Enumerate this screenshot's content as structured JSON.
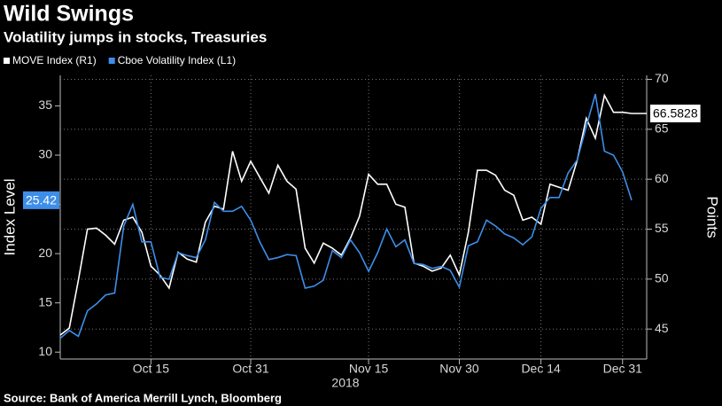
{
  "chart_data": {
    "type": "line",
    "title": "Wild Swings",
    "subtitle": "Volatility jumps in stocks, Treasuries",
    "source": "Source: Bank of America Merrill Lynch, Bloomberg",
    "x_label": "2018",
    "y_label": "Index Level",
    "y2_label": "Points",
    "categories": [
      null,
      null,
      null,
      null,
      null,
      null,
      null,
      null,
      null,
      null,
      "Oct 15",
      null,
      null,
      null,
      null,
      null,
      null,
      null,
      null,
      null,
      null,
      "Oct 31",
      null,
      null,
      null,
      null,
      null,
      null,
      null,
      null,
      null,
      null,
      null,
      null,
      "Nov 15",
      null,
      null,
      null,
      null,
      null,
      null,
      null,
      null,
      null,
      "Nov 30",
      null,
      null,
      null,
      null,
      null,
      null,
      null,
      null,
      "Dec 14",
      null,
      null,
      null,
      null,
      null,
      null,
      null,
      null,
      "Dec 31",
      null
    ],
    "series": [
      {
        "name": "MOVE Index (R1)",
        "color": "#ffffff",
        "axis": "y2",
        "values": [
          44.4,
          45.1,
          49.9,
          55.0,
          55.1,
          54.4,
          53.5,
          55.9,
          56.2,
          54.7,
          51.3,
          50.4,
          49.1,
          52.7,
          52.0,
          51.7,
          55.7,
          57.3,
          57.0,
          62.8,
          59.8,
          61.8,
          60.2,
          58.6,
          61.4,
          59.8,
          59.0,
          53.1,
          51.6,
          53.6,
          53.1,
          52.4,
          54.1,
          56.3,
          60.5,
          59.5,
          59.5,
          57.5,
          57.2,
          51.6,
          51.3,
          50.8,
          51.1,
          52.4,
          50.4,
          54.7,
          60.9,
          60.9,
          60.4,
          58.9,
          58.4,
          55.9,
          56.2,
          55.5,
          59.5,
          59.2,
          58.9,
          61.9,
          66.1,
          64.1,
          68.4,
          66.7,
          66.7,
          66.5828
        ]
      },
      {
        "name": "Cboe Volatility Index (L1)",
        "color": "#3d8ee8",
        "axis": "y",
        "values": [
          11.4,
          12.2,
          11.6,
          14.2,
          14.9,
          15.8,
          16.0,
          22.8,
          25.0,
          21.2,
          21.2,
          17.6,
          17.4,
          20.1,
          19.8,
          19.6,
          21.4,
          25.2,
          24.3,
          24.3,
          24.8,
          23.4,
          21.2,
          19.4,
          19.6,
          19.9,
          19.8,
          16.5,
          16.7,
          17.3,
          20.3,
          19.6,
          21.4,
          20.1,
          18.2,
          20.1,
          22.5,
          20.7,
          21.4,
          19.0,
          18.9,
          18.5,
          18.7,
          18.3,
          16.6,
          20.8,
          21.2,
          23.4,
          22.8,
          22.0,
          21.6,
          20.9,
          21.7,
          24.6,
          25.7,
          25.7,
          28.2,
          29.5,
          32.9,
          36.2,
          30.4,
          30.0,
          28.3,
          25.42
        ]
      }
    ],
    "ylim": [
      9.3,
      38.1
    ],
    "yticks": [
      10,
      15,
      20,
      25,
      30,
      35
    ],
    "y2lim": [
      42,
      70.4
    ],
    "y2ticks": [
      45,
      50,
      55,
      60,
      65,
      70
    ],
    "grid": true
  }
}
